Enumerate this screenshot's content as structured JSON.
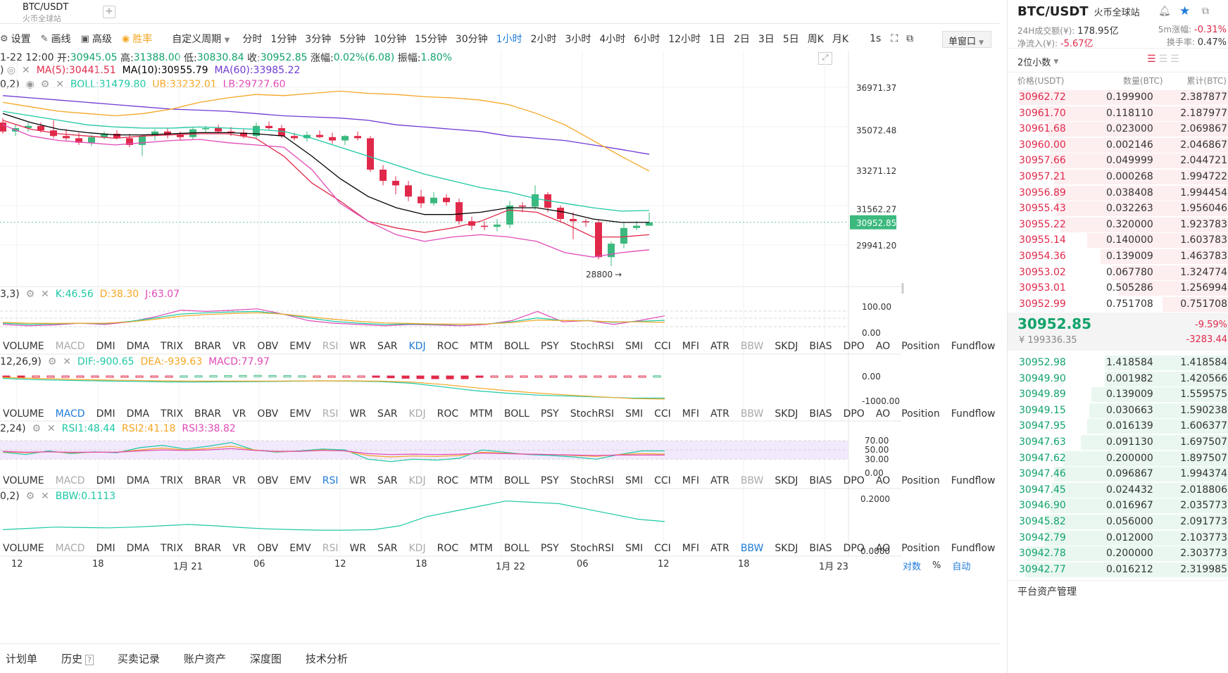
{
  "tab": {
    "title": "BTC/USDT",
    "subtitle": "火币全球站",
    "add": "+"
  },
  "toolbar": {
    "settings": "设置",
    "draw": "画线",
    "advanced": "高级",
    "winrate": "胜率",
    "custom_period": "自定义周期",
    "periods": [
      "分时",
      "1分钟",
      "3分钟",
      "5分钟",
      "10分钟",
      "15分钟",
      "30分钟",
      "1小时",
      "2小时",
      "3小时",
      "4小时",
      "6小时",
      "12小时",
      "1日",
      "2日",
      "3日",
      "5日",
      "周K",
      "月K"
    ],
    "active_period": "1小时",
    "interval": "1s",
    "window": "单窗口"
  },
  "ohlc": {
    "time": "1-22 12:00",
    "open_label": "开:",
    "open": "30945.05",
    "high_label": "高:",
    "high": "31388.00",
    "low_label": "低:",
    "low": "30830.84",
    "close_label": "收:",
    "close": "30952.85",
    "change_label": "涨幅:",
    "change": "0.02%(6.08)",
    "amp_label": "振幅:",
    "amp": "1.80%"
  },
  "ma": {
    "ma5": "MA(5):30441.51",
    "ma10": "MA(10):30955.79",
    "ma60": "MA(60):33985.22",
    "prefix": ")"
  },
  "boll": {
    "params": "0,2)",
    "boll": "BOLL:31479.80",
    "ub": "UB:33232.01",
    "lb": "LB:29727.60"
  },
  "price_axis": [
    "36971.37",
    "35072.48",
    "33271.12",
    "31562.27",
    "29941.20"
  ],
  "current_price_tag": "30952.85",
  "low_marker": "28800",
  "kdj": {
    "params": "3,3)",
    "k": "K:46.56",
    "d": "D:38.30",
    "j": "J:63.07",
    "axis": [
      "100.00",
      "0.00"
    ]
  },
  "macd": {
    "params": "12,26,9)",
    "dif": "DIF:-900.65",
    "dea": "DEA:-939.63",
    "macd": "MACD:77.97",
    "axis": [
      "0.00",
      "-1000.00"
    ]
  },
  "rsi": {
    "params": "2,24)",
    "rsi1": "RSI1:48.44",
    "rsi2": "RSI2:41.18",
    "rsi3": "RSI3:38.82",
    "axis": [
      "70.00",
      "50.00",
      "30.00",
      "0.00"
    ]
  },
  "bbw": {
    "params": "0,2)",
    "bbw": "BBW:0.1113",
    "axis": [
      "0.2000",
      "0.0000"
    ]
  },
  "indicators": [
    "VOLUME",
    "MACD",
    "DMI",
    "DMA",
    "TRIX",
    "BRAR",
    "VR",
    "OBV",
    "EMV",
    "RSI",
    "WR",
    "SAR",
    "KDJ",
    "ROC",
    "MTM",
    "BOLL",
    "PSY",
    "StochRSI",
    "SMI",
    "CCI",
    "MFI",
    "ATR",
    "BBW",
    "SKDJ",
    "BIAS",
    "DPO",
    "AO",
    "Position",
    "Fundflow"
  ],
  "indicator_rows_active": [
    "KDJ",
    "MACD",
    "RSI",
    "BBW"
  ],
  "time_axis": [
    "12",
    "18",
    "1月 21",
    "06",
    "12",
    "18",
    "1月 22",
    "06",
    "12",
    "18",
    "1月 23"
  ],
  "axis_opts": {
    "log": "对数",
    "pct": "%",
    "auto": "自动"
  },
  "bottom_tabs": [
    "计划单",
    "历史",
    "买卖记录",
    "账户资产",
    "深度图",
    "技术分析"
  ],
  "right": {
    "symbol": "BTC/USDT",
    "exchange": "火币全球站",
    "vol24_label": "24H成交额(¥):",
    "vol24": "178.95亿",
    "inflow_label": "净流入(¥):",
    "inflow": "-5.67亿",
    "chg5m_label": "5m涨幅:",
    "chg5m": "-0.31%",
    "turnover_label": "换手率:",
    "turnover": "0.47%",
    "decimals": "2位小数",
    "col_price": "价格(USDT)",
    "col_qty": "数量(BTC)",
    "col_cum": "累计(BTC)",
    "asks": [
      {
        "p": "30962.72",
        "q": "0.199900",
        "c": "2.387877",
        "w": 0.95
      },
      {
        "p": "30961.70",
        "q": "0.118110",
        "c": "2.187977",
        "w": 0.87
      },
      {
        "p": "30961.68",
        "q": "0.023000",
        "c": "2.069867",
        "w": 0.82
      },
      {
        "p": "30960.00",
        "q": "0.002146",
        "c": "2.046867",
        "w": 0.81
      },
      {
        "p": "30957.66",
        "q": "0.049999",
        "c": "2.044721",
        "w": 0.81
      },
      {
        "p": "30957.21",
        "q": "0.000268",
        "c": "1.994722",
        "w": 0.79
      },
      {
        "p": "30956.89",
        "q": "0.038408",
        "c": "1.994454",
        "w": 0.79
      },
      {
        "p": "30955.43",
        "q": "0.032263",
        "c": "1.956046",
        "w": 0.78
      },
      {
        "p": "30955.22",
        "q": "0.320000",
        "c": "1.923783",
        "w": 0.76
      },
      {
        "p": "30955.14",
        "q": "0.140000",
        "c": "1.603783",
        "w": 0.64
      },
      {
        "p": "30954.36",
        "q": "0.139009",
        "c": "1.463783",
        "w": 0.58
      },
      {
        "p": "30953.02",
        "q": "0.067780",
        "c": "1.324774",
        "w": 0.53
      },
      {
        "p": "30953.01",
        "q": "0.505286",
        "c": "1.256994",
        "w": 0.5
      },
      {
        "p": "30952.99",
        "q": "0.751708",
        "c": "0.751708",
        "w": 0.3
      }
    ],
    "last_price": "30952.85",
    "last_cny": "¥ 199336.35",
    "last_chg_pct": "-9.59%",
    "last_chg": "-3283.44",
    "bids": [
      {
        "p": "30952.98",
        "q": "1.418584",
        "c": "1.418584",
        "w": 0.56
      },
      {
        "p": "30949.90",
        "q": "0.001982",
        "c": "1.420566",
        "w": 0.56
      },
      {
        "p": "30949.89",
        "q": "0.139009",
        "c": "1.559575",
        "w": 0.62
      },
      {
        "p": "30949.15",
        "q": "0.030663",
        "c": "1.590238",
        "w": 0.63
      },
      {
        "p": "30947.95",
        "q": "0.016139",
        "c": "1.606377",
        "w": 0.64
      },
      {
        "p": "30947.63",
        "q": "0.091130",
        "c": "1.697507",
        "w": 0.67
      },
      {
        "p": "30947.62",
        "q": "0.200000",
        "c": "1.897507",
        "w": 0.75
      },
      {
        "p": "30947.46",
        "q": "0.096867",
        "c": "1.994374",
        "w": 0.79
      },
      {
        "p": "30947.45",
        "q": "0.024432",
        "c": "2.018806",
        "w": 0.8
      },
      {
        "p": "30946.90",
        "q": "0.016967",
        "c": "2.035773",
        "w": 0.81
      },
      {
        "p": "30945.82",
        "q": "0.056000",
        "c": "2.091773",
        "w": 0.83
      },
      {
        "p": "30942.79",
        "q": "0.012000",
        "c": "2.103773",
        "w": 0.83
      },
      {
        "p": "30942.78",
        "q": "0.200000",
        "c": "2.303773",
        "w": 0.91
      },
      {
        "p": "30942.77",
        "q": "0.016212",
        "c": "2.319985",
        "w": 0.92
      }
    ],
    "asset_mgmt": "平台资产管理"
  },
  "colors": {
    "up": "#11a36a",
    "down": "#e0294a",
    "accent": "#1e7bd8",
    "ma5": "#e0294a",
    "ma10": "#000000",
    "ma60": "#6f3ad4",
    "ub": "#f5a623",
    "lb": "#e049b8",
    "boll": "#1ec8a5"
  }
}
